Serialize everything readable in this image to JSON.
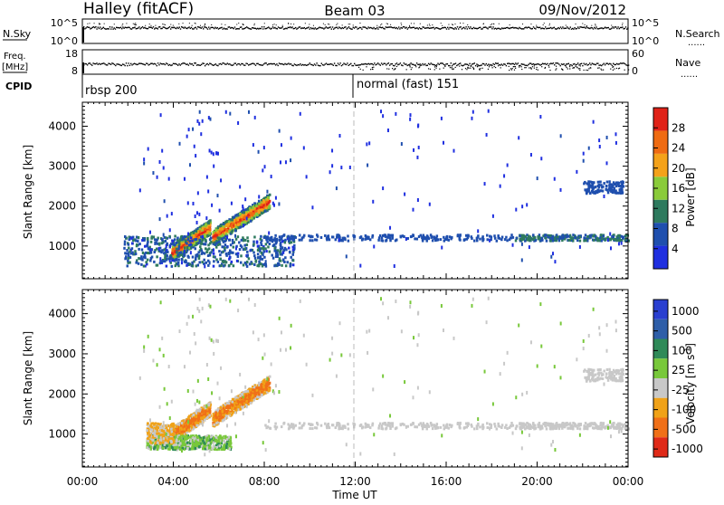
{
  "header": {
    "title_left": "Halley (fitACF)",
    "title_center": "Beam 03",
    "title_right": "09/Nov/2012"
  },
  "top_panels": {
    "nsky_label": "N.Sky",
    "nsky_ticks": [
      "10^5",
      "10^0"
    ],
    "nsearch_label": "N.Search",
    "nsearch_ticks": [
      "10^5",
      "10^0"
    ],
    "freq_label": "Freq.",
    "freq_unit": "[MHz]",
    "freq_ticks": [
      "18",
      "8"
    ],
    "nave_label": "Nave",
    "nave_ticks": [
      "60",
      "0"
    ],
    "cpid_label": "CPID",
    "cpid_segments": [
      {
        "label": "rbsp 200",
        "start_hour": 0
      },
      {
        "label": "normal (fast) 151",
        "start_hour": 12
      }
    ],
    "ruled_legend": "......"
  },
  "chart_data": [
    {
      "type": "heatmap",
      "panel": "power",
      "ylabel": "Slant Range [km]",
      "xlim": [
        0,
        24
      ],
      "ylim": [
        180,
        4600
      ],
      "yticks": [
        "1000",
        "2000",
        "3000",
        "4000"
      ],
      "colorbar": {
        "label": "Power [dB]",
        "ticks": [
          "4",
          "8",
          "12",
          "16",
          "20",
          "24",
          "28"
        ],
        "range": [
          0,
          32
        ],
        "colors": [
          "#1f2fe0",
          "#1f4fae",
          "#2e7a5e",
          "#8acb3a",
          "#f4a21a",
          "#ef6b12",
          "#e02218"
        ]
      },
      "features": [
        {
          "name": "near-range band",
          "hours": [
            1.8,
            9.5
          ],
          "range_km": [
            500,
            1300
          ],
          "power_db": 6
        },
        {
          "name": "main arc",
          "hours": [
            3.5,
            8.2
          ],
          "range_km": [
            900,
            2200
          ],
          "power_db": 22
        },
        {
          "name": "evening band",
          "hours": [
            19.0,
            24.0
          ],
          "range_km": [
            1150,
            1300
          ],
          "power_db": 8
        }
      ]
    },
    {
      "type": "heatmap",
      "panel": "velocity",
      "xlabel": "Time UT",
      "ylabel": "Slant Range [km]",
      "xlim": [
        0,
        24
      ],
      "ylim": [
        180,
        4600
      ],
      "xticks": [
        "00:00",
        "04:00",
        "08:00",
        "12:00",
        "16:00",
        "20:00",
        "00:00"
      ],
      "yticks": [
        "1000",
        "2000",
        "3000",
        "4000"
      ],
      "colorbar": {
        "label": "Velocity [m s",
        "label_sup": "-1",
        "label_tail": "]",
        "ticks": [
          "1000",
          "500",
          "100",
          "25",
          "-25",
          "-100",
          "-500",
          "-1000"
        ],
        "colors": [
          "#2a3fd0",
          "#2e5ea8",
          "#2f8a58",
          "#78c83a",
          "#c8c8c8",
          "#f0a218",
          "#f07018",
          "#e02a18"
        ]
      },
      "features": [
        {
          "name": "main arc",
          "hours": [
            4.5,
            8.2
          ],
          "range_km": [
            1100,
            2300
          ],
          "velocity": -150
        },
        {
          "name": "near-range band",
          "hours": [
            3.0,
            6.5
          ],
          "range_km": [
            700,
            1000
          ],
          "velocity": 150
        },
        {
          "name": "ground scatter",
          "hours": [
            8.0,
            24.0
          ],
          "range_km": [
            1150,
            1300
          ],
          "velocity": 0
        }
      ]
    }
  ]
}
